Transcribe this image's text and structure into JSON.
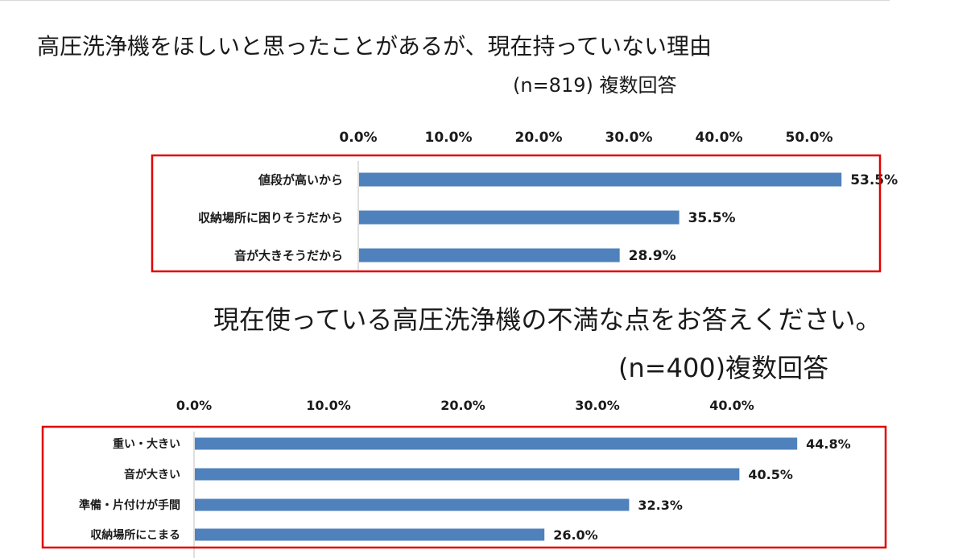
{
  "chart_data": [
    {
      "type": "bar",
      "orientation": "horizontal",
      "title": "高圧洗浄機をほしいと思ったことがあるが、現在持っていない理由",
      "subtitle": "(n=819) 複数回答",
      "categories": [
        "値段が高いから",
        "収納場所に困りそうだから",
        "音が大きそうだから"
      ],
      "values": [
        53.5,
        35.5,
        28.9
      ],
      "value_labels": [
        "53.5%",
        "35.5%",
        "28.9%"
      ],
      "xticks": [
        0,
        10,
        20,
        30,
        40,
        50
      ],
      "xtick_labels": [
        "0.0%",
        "10.0%",
        "20.0%",
        "30.0%",
        "40.0%",
        "50.0%"
      ],
      "xlim": [
        0,
        55
      ],
      "axis_position": "top",
      "legend": "none",
      "grid": false
    },
    {
      "type": "bar",
      "orientation": "horizontal",
      "title": "現在使っている高圧洗浄機の不満な点をお答えください。",
      "subtitle": "(n=400)複数回答",
      "categories": [
        "重い・大きい",
        "音が大きい",
        "準備・片付けが手間",
        "収納場所にこまる"
      ],
      "values": [
        44.8,
        40.5,
        32.3,
        26.0
      ],
      "value_labels": [
        "44.8%",
        "40.5%",
        "32.3%",
        "26.0%"
      ],
      "xticks": [
        0,
        10,
        20,
        30,
        40
      ],
      "xtick_labels": [
        "0.0%",
        "10.0%",
        "20.0%",
        "30.0%",
        "40.0%"
      ],
      "xlim": [
        0,
        46
      ],
      "axis_position": "top",
      "legend": "none",
      "grid": false
    }
  ],
  "colors": {
    "bar": "#4f81bd",
    "highlight_box": "#e00000",
    "axis": "#bfbfbf"
  }
}
